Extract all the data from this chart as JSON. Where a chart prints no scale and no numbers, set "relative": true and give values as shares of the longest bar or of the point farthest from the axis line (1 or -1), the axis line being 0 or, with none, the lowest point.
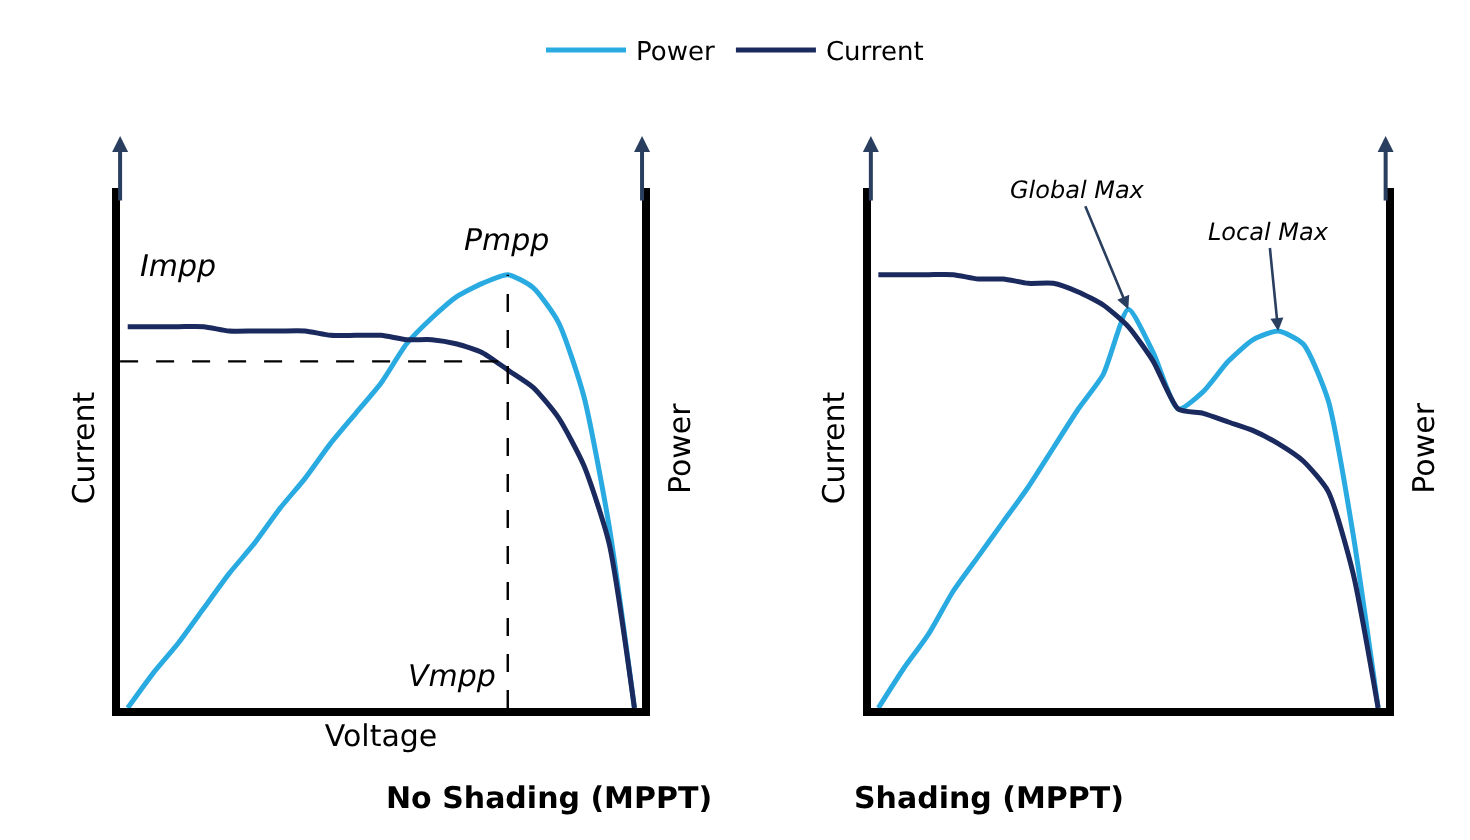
{
  "chart_data": [
    {
      "type": "line",
      "relative": true,
      "title": "No Shading (MPPT)",
      "xlabel": "Voltage",
      "ylabel": "Current",
      "y2label": "Power",
      "legend": "top",
      "marker": "none",
      "line_style": "solid",
      "categories": [
        null,
        null,
        null,
        null,
        null,
        null,
        null,
        null,
        null,
        null,
        null,
        null,
        null,
        null,
        null,
        null,
        null,
        null,
        null,
        null,
        null
      ],
      "series": [
        {
          "name": "Power",
          "color": "#29abe2",
          "values": [
            0,
            0.08,
            0.15,
            0.23,
            0.31,
            0.38,
            0.46,
            0.53,
            0.61,
            0.68,
            0.75,
            0.84,
            0.9,
            0.95,
            0.98,
            1,
            0.97,
            0.89,
            0.72,
            0.42,
            0
          ]
        },
        {
          "name": "Current",
          "color": "#1b2a5e",
          "values": [
            0.88,
            0.88,
            0.88,
            0.88,
            0.87,
            0.87,
            0.87,
            0.87,
            0.86,
            0.86,
            0.86,
            0.85,
            0.85,
            0.84,
            0.82,
            0.78,
            0.74,
            0.67,
            0.56,
            0.38,
            0
          ]
        }
      ],
      "ref_lines": [
        {
          "axis": "y",
          "value": 0.8,
          "label": "Impp",
          "line_style": "dashed",
          "color": "#000000"
        }
      ],
      "annotations": [
        "Pmpp",
        "Vmpp"
      ]
    },
    {
      "type": "line",
      "relative": true,
      "title": "Shading (MPPT)",
      "ylabel": "Current",
      "y2label": "Power",
      "marker": "none",
      "line_style": "solid",
      "categories": [
        null,
        null,
        null,
        null,
        null,
        null,
        null,
        null,
        null,
        null,
        null,
        null,
        null,
        null,
        null,
        null,
        null,
        null,
        null,
        null,
        null
      ],
      "series": [
        {
          "color": "#29abe2",
          "values": [
            0,
            0.09,
            0.17,
            0.27,
            0.35,
            0.43,
            0.51,
            0.6,
            0.69,
            0.77,
            0.92,
            0.82,
            0.69,
            0.73,
            0.8,
            0.85,
            0.87,
            0.84,
            0.71,
            0.4,
            0
          ]
        },
        {
          "color": "#1b2a5e",
          "values": [
            1,
            1,
            1,
            1,
            0.99,
            0.99,
            0.98,
            0.98,
            0.96,
            0.93,
            0.88,
            0.8,
            0.69,
            0.68,
            0.66,
            0.64,
            0.61,
            0.57,
            0.5,
            0.31,
            0
          ]
        }
      ],
      "annotations": [
        "Global Max",
        "Local Max"
      ]
    }
  ]
}
